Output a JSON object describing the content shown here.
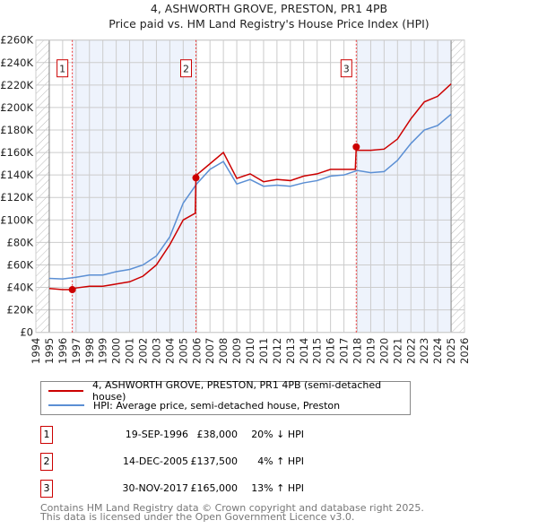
{
  "chart_data": {
    "type": "line",
    "title": "4, ASHWORTH GROVE, PRESTON, PR1 4PB",
    "subtitle": "Price paid vs. HM Land Registry's House Price Index (HPI)",
    "xlim": [
      1994,
      2026
    ],
    "ylim": [
      0,
      260000
    ],
    "x_ticks": [
      "1994",
      "1995",
      "1996",
      "1997",
      "1998",
      "1999",
      "2000",
      "2001",
      "2002",
      "2003",
      "2004",
      "2005",
      "2006",
      "2007",
      "2008",
      "2009",
      "2010",
      "2011",
      "2012",
      "2013",
      "2014",
      "2015",
      "2016",
      "2017",
      "2018",
      "2019",
      "2020",
      "2021",
      "2022",
      "2023",
      "2024",
      "2025",
      "2026"
    ],
    "y_ticks": [
      "£0",
      "£20K",
      "£40K",
      "£60K",
      "£80K",
      "£100K",
      "£120K",
      "£140K",
      "£160K",
      "£180K",
      "£200K",
      "£220K",
      "£240K",
      "£260K"
    ],
    "grid": true,
    "series": [
      {
        "name": "4, ASHWORTH GROVE, PRESTON, PR1 4PB (semi-detached house)",
        "color": "#cc0000",
        "x": [
          1995,
          1996,
          1996.72,
          1997,
          1998,
          1999,
          2000,
          2001,
          2002,
          2003,
          2004,
          2005,
          2005.9,
          2005.95,
          2006,
          2007,
          2008,
          2009,
          2010,
          2011,
          2012,
          2013,
          2014,
          2015,
          2016,
          2017,
          2017.85,
          2017.92,
          2018,
          2019,
          2020,
          2021,
          2022,
          2023,
          2024,
          2025
        ],
        "y": [
          39000,
          38000,
          38000,
          39500,
          41000,
          41000,
          43000,
          45000,
          50000,
          60000,
          78000,
          100000,
          106000,
          137500,
          140000,
          150000,
          160000,
          137000,
          141000,
          134000,
          136000,
          135000,
          139000,
          141000,
          145000,
          145000,
          145000,
          165000,
          162000,
          162000,
          163000,
          172000,
          190000,
          205000,
          210000,
          221000
        ]
      },
      {
        "name": "HPI: Average price, semi-detached house, Preston",
        "color": "#5b8fd4",
        "x": [
          1995,
          1996,
          1997,
          1998,
          1999,
          2000,
          2001,
          2002,
          2003,
          2004,
          2005,
          2006,
          2007,
          2008,
          2009,
          2010,
          2011,
          2012,
          2013,
          2014,
          2015,
          2016,
          2017,
          2018,
          2019,
          2020,
          2021,
          2022,
          2023,
          2024,
          2025
        ],
        "y": [
          48000,
          47500,
          49000,
          51000,
          51000,
          54000,
          56000,
          60000,
          68000,
          85000,
          115000,
          132000,
          145000,
          152000,
          132000,
          136000,
          130000,
          131000,
          130000,
          133000,
          135000,
          139000,
          140000,
          144000,
          142000,
          143000,
          153000,
          168000,
          180000,
          184000,
          194000
        ]
      }
    ],
    "sales": [
      {
        "label": "1",
        "x": 1996.72,
        "price": 38000,
        "date": "19-SEP-1996",
        "price_text": "£38,000",
        "hpi": "20% ↓ HPI"
      },
      {
        "label": "2",
        "x": 2005.95,
        "price": 137500,
        "date": "14-DEC-2005",
        "price_text": "£137,500",
        "hpi": "4% ↑ HPI"
      },
      {
        "label": "3",
        "x": 2017.92,
        "price": 165000,
        "date": "30-NOV-2017",
        "price_text": "£165,000",
        "hpi": "13% ↑ HPI"
      }
    ],
    "shaded_ranges": [
      [
        1996.72,
        2005.95
      ],
      [
        2017.92,
        2025
      ]
    ],
    "hatched_ranges": [
      [
        1994,
        1995
      ],
      [
        2025,
        2026
      ]
    ],
    "legend_placement": "below"
  },
  "footer": [
    "Contains HM Land Registry data © Crown copyright and database right 2025.",
    "This data is licensed under the Open Government Licence v3.0."
  ]
}
